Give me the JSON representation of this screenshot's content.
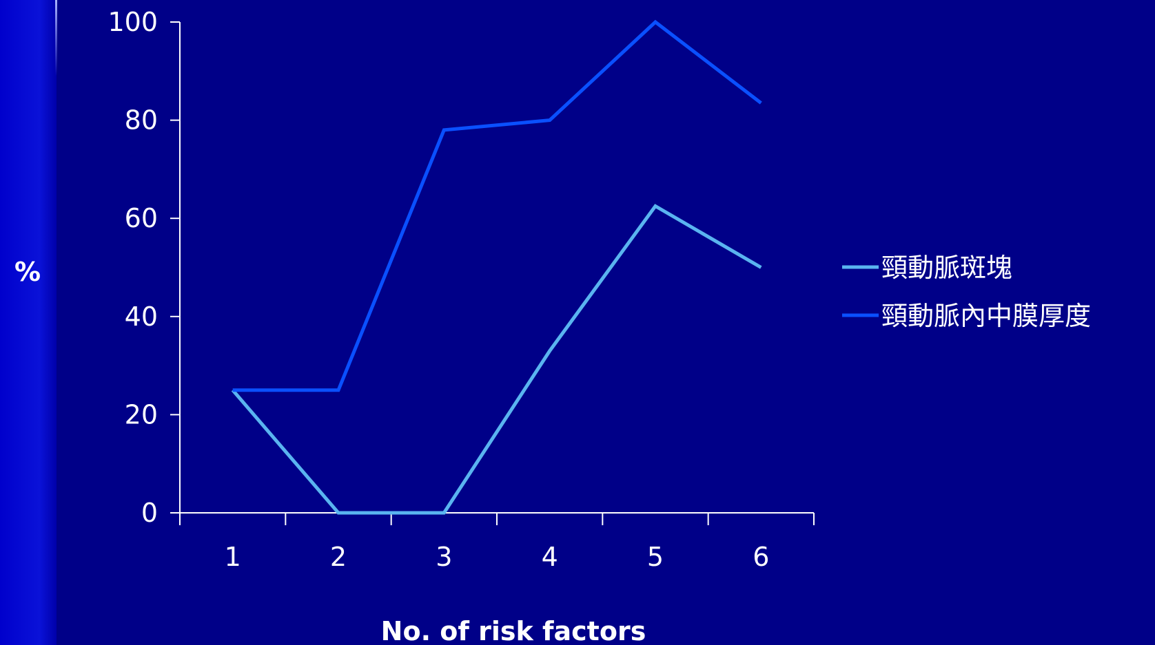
{
  "chart_data": {
    "type": "line",
    "title": "",
    "xlabel": "No. of risk factors",
    "ylabel": "%",
    "categories": [
      "1",
      "2",
      "3",
      "4",
      "5",
      "6"
    ],
    "yticks": [
      "0",
      "20",
      "40",
      "60",
      "80",
      "100"
    ],
    "ylim": [
      0,
      100
    ],
    "grid": false,
    "legend": "right",
    "series": [
      {
        "name": "頸動脈斑塊",
        "color": "#5ab4f0",
        "values": [
          25,
          0,
          0,
          33,
          62.5,
          50
        ]
      },
      {
        "name": "頸動脈內中膜厚度",
        "color": "#0a50ff",
        "values": [
          25,
          25,
          78,
          80,
          100,
          83.5
        ]
      }
    ]
  },
  "colors": {
    "background": "#000088",
    "axis": "#ffffff"
  }
}
